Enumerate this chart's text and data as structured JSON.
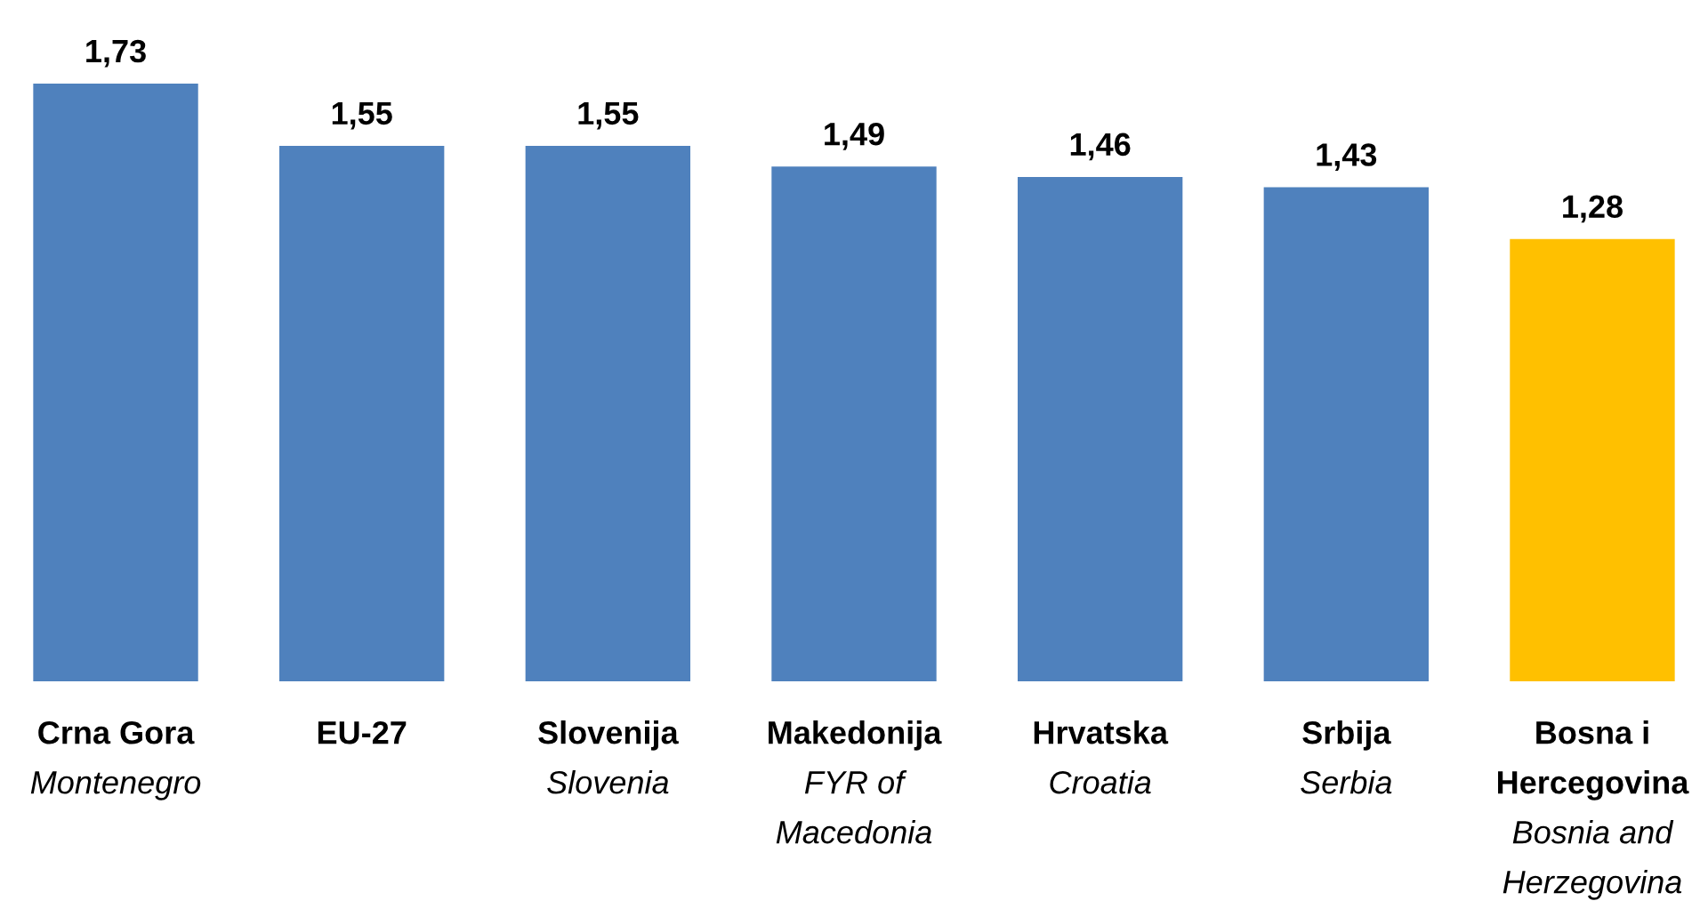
{
  "chart_data": {
    "type": "bar",
    "categories": [
      "Crna Gora\nMontenegro",
      "EU-27\n",
      "Slovenija\nSlovenia",
      "Makedonija\nFYR of Macedonia",
      "Hrvatska\nCroatia",
      "Srbija\nSerbia",
      "Bosna i Hercegovina\nBosnia and Herzegovina"
    ],
    "values": [
      1.73,
      1.55,
      1.55,
      1.49,
      1.46,
      1.43,
      1.28
    ],
    "colors": [
      "#4f81bd",
      "#4f81bd",
      "#4f81bd",
      "#4f81bd",
      "#4f81bd",
      "#4f81bd",
      "#ffc000"
    ],
    "value_labels": [
      "1,73",
      "1,55",
      "1,55",
      "1,49",
      "1,46",
      "1,43",
      "1,28"
    ]
  }
}
